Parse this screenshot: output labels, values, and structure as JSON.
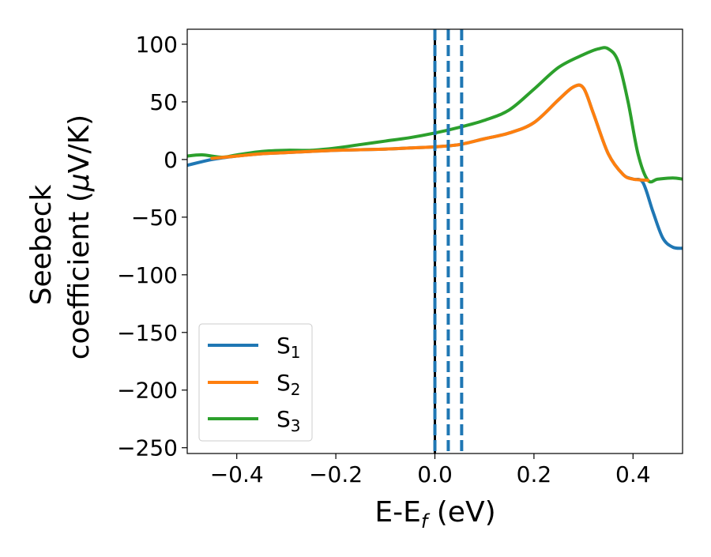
{
  "chart_data": {
    "type": "line",
    "title": "",
    "xlabel": "E-E",
    "xlabel_sub": "f",
    "xlabel_unit": " (eV)",
    "ylabel_line1": "Seebeck",
    "ylabel_line2_pre": "coefficient  (",
    "ylabel_line2_mu": "μ",
    "ylabel_line2_post": "V/K)",
    "xlim": [
      -0.5,
      0.5
    ],
    "ylim": [
      -255,
      113
    ],
    "xticks": [
      -0.4,
      -0.2,
      0.0,
      0.2,
      0.4
    ],
    "xtick_labels": [
      "−0.4",
      "−0.2",
      "0.0",
      "0.2",
      "0.4"
    ],
    "yticks": [
      100,
      50,
      0,
      -50,
      -100,
      -150,
      -200,
      -250
    ],
    "ytick_labels": [
      "100",
      "50",
      "0",
      "−50",
      "−100",
      "−150",
      "−200",
      "−250"
    ],
    "grid": false,
    "legend_position": "lower-left",
    "series": [
      {
        "name": "S",
        "name_sub": "1",
        "color": "#1f77b4",
        "x": [
          -0.5,
          -0.45,
          -0.4,
          -0.35,
          -0.3,
          -0.25,
          -0.2,
          -0.15,
          -0.1,
          -0.05,
          0.0,
          0.05,
          0.1,
          0.15,
          0.2,
          0.25,
          0.28,
          0.3,
          0.32,
          0.35,
          0.38,
          0.4,
          0.42,
          0.44,
          0.46,
          0.48,
          0.5
        ],
        "y": [
          -5,
          0,
          3,
          5,
          6,
          7,
          8,
          8.5,
          9,
          10,
          11,
          13,
          18,
          23,
          32,
          52,
          63,
          62,
          40,
          5,
          -13,
          -17,
          -20,
          -45,
          -68,
          -76,
          -77
        ]
      },
      {
        "name": "S",
        "name_sub": "2",
        "color": "#ff7f0e",
        "x": [
          -0.45,
          -0.4,
          -0.35,
          -0.3,
          -0.25,
          -0.2,
          -0.15,
          -0.1,
          -0.05,
          0.0,
          0.05,
          0.1,
          0.15,
          0.2,
          0.25,
          0.28,
          0.3,
          0.32,
          0.35,
          0.38,
          0.4,
          0.43
        ],
        "y": [
          1,
          3,
          5,
          6,
          7,
          8,
          8.5,
          9,
          10,
          11,
          13,
          18,
          23,
          32,
          52,
          63,
          62,
          40,
          5,
          -13,
          -17,
          -18
        ]
      },
      {
        "name": "S",
        "name_sub": "3",
        "color": "#2ca02c",
        "x": [
          -0.5,
          -0.47,
          -0.43,
          -0.4,
          -0.35,
          -0.3,
          -0.25,
          -0.2,
          -0.15,
          -0.1,
          -0.05,
          0.0,
          0.05,
          0.1,
          0.15,
          0.2,
          0.25,
          0.3,
          0.33,
          0.35,
          0.37,
          0.39,
          0.41,
          0.43,
          0.45,
          0.48,
          0.5
        ],
        "y": [
          3,
          4,
          2,
          4,
          7,
          8,
          8,
          10,
          13,
          16,
          19,
          23,
          28,
          34,
          43,
          61,
          80,
          91,
          96,
          96,
          85,
          50,
          5,
          -18,
          -17,
          -16,
          -17
        ]
      }
    ],
    "vlines": [
      {
        "x": 0.0,
        "color": "#000000",
        "style": "solid"
      },
      {
        "x": 0.0,
        "color": "#1f77b4",
        "style": "dashed"
      },
      {
        "x": 0.027,
        "color": "#1f77b4",
        "style": "dashed"
      },
      {
        "x": 0.054,
        "color": "#1f77b4",
        "style": "dashed"
      }
    ]
  }
}
